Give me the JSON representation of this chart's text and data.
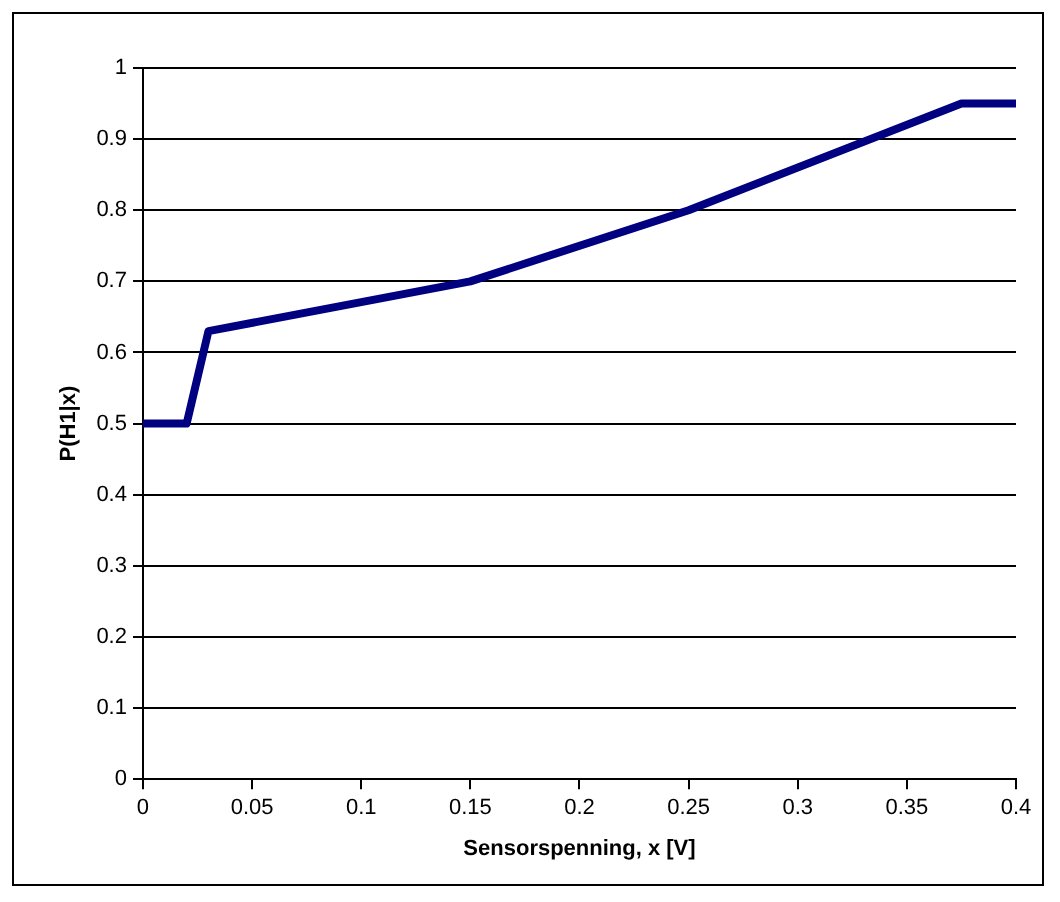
{
  "chart_data": {
    "type": "line",
    "xlabel": "Sensorspenning, x [V]",
    "ylabel": "P(H1|x)",
    "x": [
      0,
      0.02,
      0.03,
      0.15,
      0.25,
      0.375,
      0.4
    ],
    "series": [
      {
        "color": "#000080",
        "values": [
          0.5,
          0.5,
          0.63,
          0.7,
          0.8,
          0.95,
          0.95
        ]
      }
    ],
    "xlim": [
      0,
      0.4
    ],
    "xticks": [
      0,
      0.05,
      0.1,
      0.15,
      0.2,
      0.25,
      0.3,
      0.35,
      0.4
    ],
    "ylim": [
      0,
      1
    ],
    "yticks": [
      0,
      0.1,
      0.2,
      0.3,
      0.4,
      0.5,
      0.6,
      0.7,
      0.8,
      0.9,
      1
    ],
    "grid": "y",
    "marker": "none",
    "line_style": "solid"
  }
}
